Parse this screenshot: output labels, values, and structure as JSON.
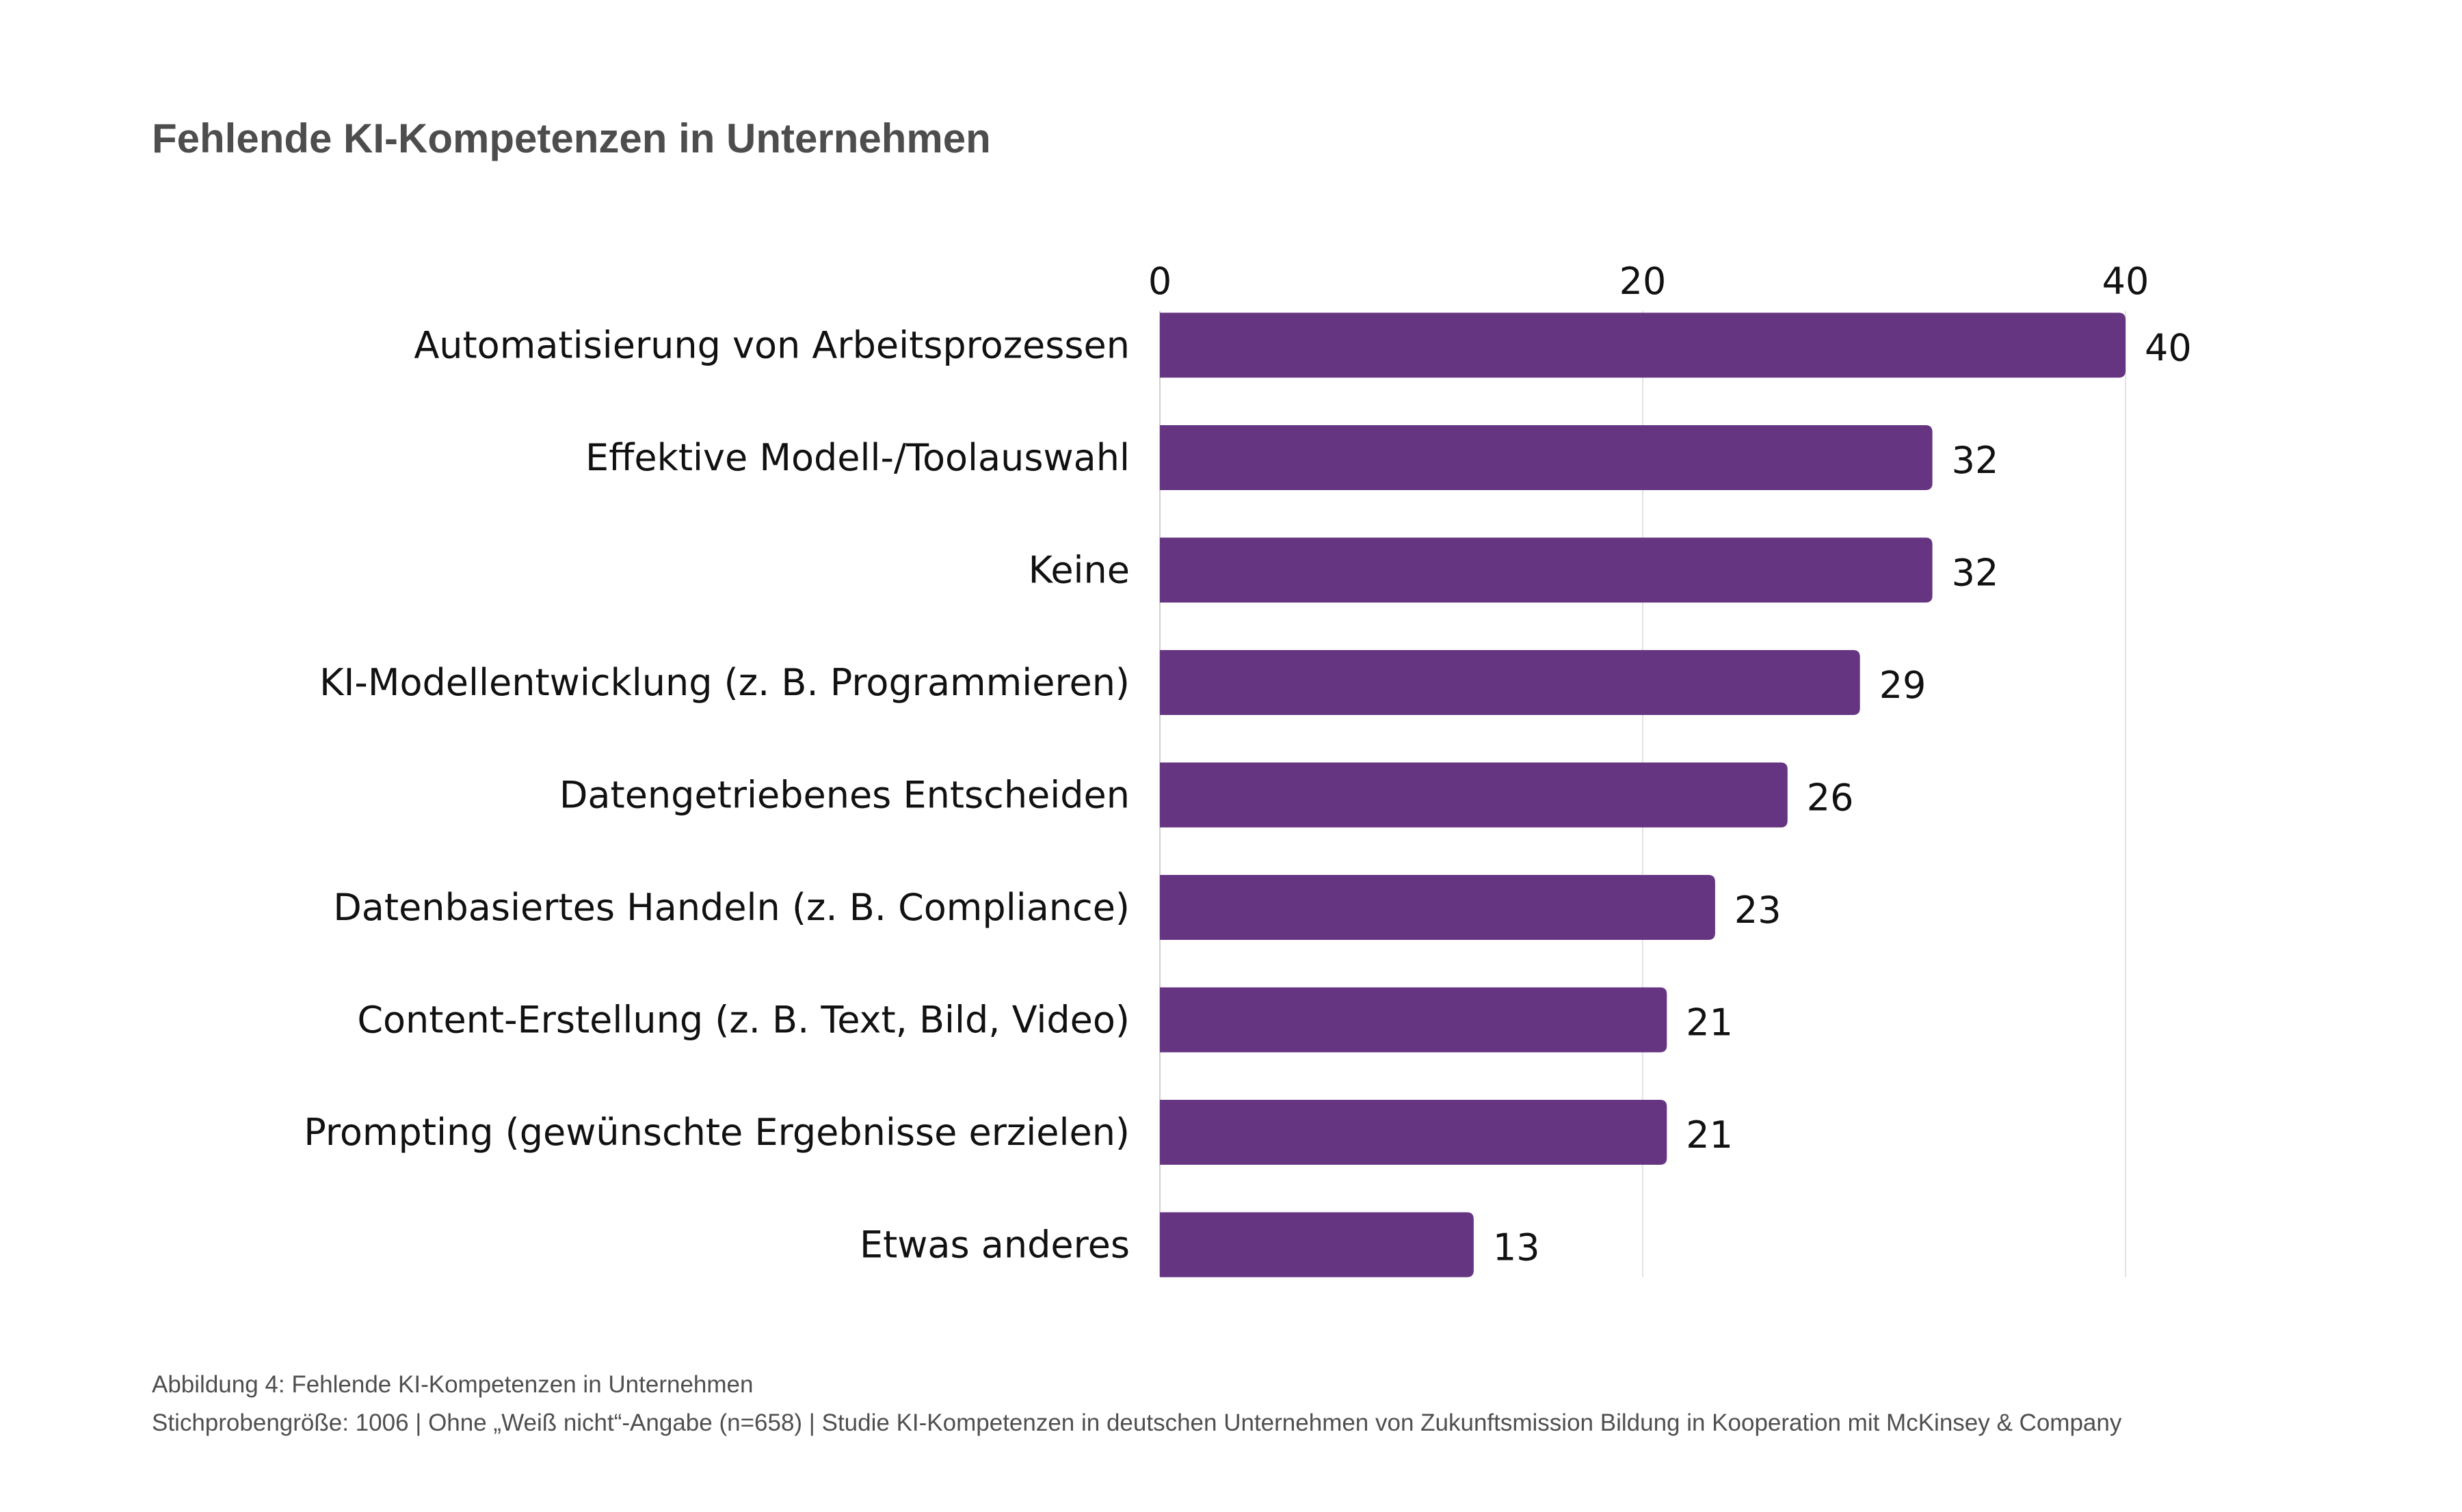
{
  "chart_data": {
    "type": "bar",
    "orientation": "horizontal",
    "title": "Fehlende KI-Kompetenzen in Unternehmen",
    "categories": [
      "Automatisierung von Arbeitsprozessen",
      "Effektive Modell-/Toolauswahl",
      "Keine",
      "KI-Modellentwicklung (z. B. Programmieren)",
      "Datengetriebenes Entscheiden",
      "Datenbasiertes Handeln (z. B. Compliance)",
      "Content-Erstellung (z. B. Text, Bild, Video)",
      "Prompting (gewünschte Ergebnisse erzielen)",
      "Etwas anderes"
    ],
    "values": [
      40,
      32,
      32,
      29,
      26,
      23,
      21,
      21,
      13
    ],
    "xlim": [
      0,
      40
    ],
    "xticks": [
      "0",
      "20",
      "40"
    ],
    "xaxis_position": "top",
    "grid": true,
    "bar_color": "#663582",
    "xlabel": "",
    "ylabel": ""
  },
  "footer": {
    "caption": "Abbildung 4: Fehlende KI-Kompetenzen in Unternehmen",
    "source": "Stichprobengröße: 1006 | Ohne „Weiß nicht“-Angabe (n=658) | Studie KI-Kompetenzen in deutschen Unternehmen von Zukunftsmission Bildung in Kooperation mit McKinsey & Company"
  }
}
